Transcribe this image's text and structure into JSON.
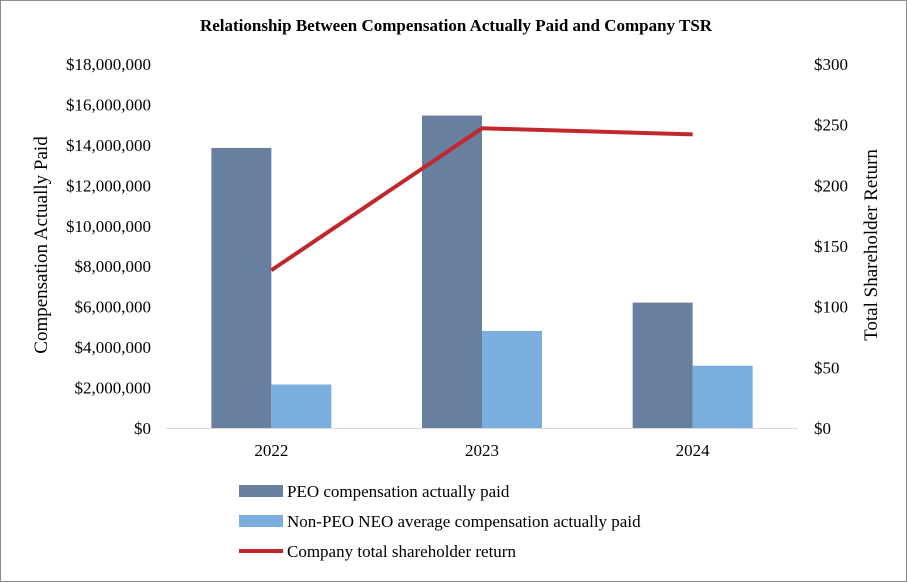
{
  "chart_data": {
    "type": "bar",
    "title": "Relationship Between Compensation Actually Paid and Company TSR",
    "categories": [
      "2022",
      "2023",
      "2024"
    ],
    "ylabel": "Compensation Actually Paid",
    "y2label": "Total Shareholder Return",
    "ylim": [
      0,
      18000000
    ],
    "y2lim": [
      0,
      300
    ],
    "yticks": [
      "$0",
      "$2,000,000",
      "$4,000,000",
      "$6,000,000",
      "$8,000,000",
      "$10,000,000",
      "$12,000,000",
      "$14,000,000",
      "$16,000,000",
      "$18,000,000"
    ],
    "y2ticks": [
      "$0",
      "$50",
      "$100",
      "$150",
      "$200",
      "$250",
      "$300"
    ],
    "series": [
      {
        "name": "PEO compensation actually paid",
        "kind": "bar",
        "axis": "left",
        "color": "#687fa0",
        "values": [
          13850000,
          15450000,
          6200000
        ]
      },
      {
        "name": "Non-PEO NEO average compensation actually paid",
        "kind": "bar",
        "axis": "left",
        "color": "#7aaede",
        "values": [
          2150000,
          4800000,
          3080000
        ]
      },
      {
        "name": "Company total shareholder return",
        "kind": "line",
        "axis": "right",
        "color": "#c0282d",
        "values": [
          130,
          247,
          242
        ]
      }
    ],
    "legend_position": "bottom",
    "grid": false
  }
}
